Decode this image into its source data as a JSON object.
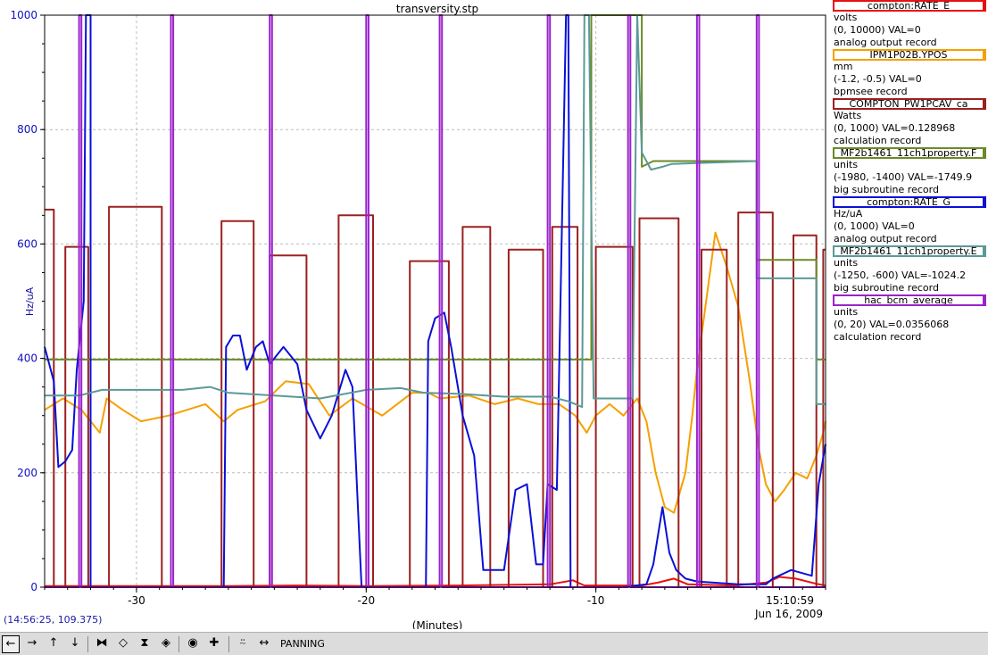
{
  "window": {
    "title": "transversity.stp"
  },
  "chart_data": {
    "type": "line",
    "title": "transversity.stp",
    "xlabel": "(Minutes)",
    "ylabel": "Hz/uA",
    "xlim": [
      -34,
      0
    ],
    "ylim": [
      0,
      1000
    ],
    "x_ticks": [
      -30,
      -20,
      -10
    ],
    "y_ticks": [
      0,
      200,
      400,
      600,
      800,
      1000
    ],
    "grid": true,
    "end_time": "15:10:59",
    "end_date": "Jun 16, 2009",
    "legend_position": "right",
    "series": [
      {
        "name": "compton:RATE_E",
        "color": "#e81010",
        "units": "volts",
        "range": "(0, 10000)",
        "val": "VAL=0",
        "record": "analog output record",
        "points": [
          [
            -34,
            2
          ],
          [
            -26,
            2
          ],
          [
            -23,
            3
          ],
          [
            -20,
            2
          ],
          [
            -16,
            3
          ],
          [
            -12,
            5
          ],
          [
            -11,
            12
          ],
          [
            -10.5,
            3
          ],
          [
            -8,
            3
          ],
          [
            -7.3,
            8
          ],
          [
            -6.6,
            15
          ],
          [
            -6,
            5
          ],
          [
            -4,
            3
          ],
          [
            -2.6,
            8
          ],
          [
            -2,
            18
          ],
          [
            -1.3,
            15
          ],
          [
            -0.4,
            6
          ],
          [
            0,
            3
          ]
        ]
      },
      {
        "name": "IPM1P02B.YPOS",
        "color": "#f5a000",
        "units": "mm",
        "range": "(-1.2, -0.5)",
        "val": "VAL=0",
        "record": "bpmsee record",
        "points": [
          [
            -34,
            310
          ],
          [
            -33.2,
            330
          ],
          [
            -32.4,
            310
          ],
          [
            -31.6,
            270
          ],
          [
            -31.3,
            330
          ],
          [
            -30.6,
            310
          ],
          [
            -29.8,
            290
          ],
          [
            -28.6,
            300
          ],
          [
            -27,
            320
          ],
          [
            -26.2,
            290
          ],
          [
            -25.6,
            310
          ],
          [
            -24.4,
            325
          ],
          [
            -23.5,
            360
          ],
          [
            -22.5,
            355
          ],
          [
            -21.6,
            300
          ],
          [
            -20.6,
            330
          ],
          [
            -19.3,
            300
          ],
          [
            -18,
            340
          ],
          [
            -17.3,
            340
          ],
          [
            -16.8,
            330
          ],
          [
            -15.5,
            335
          ],
          [
            -14.4,
            320
          ],
          [
            -13.4,
            330
          ],
          [
            -12.5,
            320
          ],
          [
            -11.6,
            320
          ],
          [
            -10.9,
            300
          ],
          [
            -10.4,
            270
          ],
          [
            -10,
            300
          ],
          [
            -9.4,
            320
          ],
          [
            -8.8,
            300
          ],
          [
            -8.2,
            330
          ],
          [
            -7.8,
            290
          ],
          [
            -7.4,
            200
          ],
          [
            -7.0,
            140
          ],
          [
            -6.6,
            130
          ],
          [
            -6.1,
            200
          ],
          [
            -5.8,
            300
          ],
          [
            -5.6,
            380
          ],
          [
            -5.2,
            500
          ],
          [
            -4.8,
            620
          ],
          [
            -4.3,
            560
          ],
          [
            -3.8,
            490
          ],
          [
            -3.3,
            360
          ],
          [
            -2.9,
            240
          ],
          [
            -2.6,
            180
          ],
          [
            -2.2,
            150
          ],
          [
            -1.8,
            170
          ],
          [
            -1.3,
            200
          ],
          [
            -0.8,
            190
          ],
          [
            -0.4,
            230
          ],
          [
            -0.1,
            270
          ],
          [
            0,
            290
          ]
        ]
      },
      {
        "name": "COMPTON_PW1PCAV_ca",
        "color": "#9c2020",
        "units": "Watts",
        "range": "(0, 1000)",
        "val": "VAL=0.128968",
        "record": "calculation record",
        "points": [
          [
            -34,
            660
          ],
          [
            -33.6,
            660
          ],
          [
            -33.6,
            0
          ],
          [
            -33.1,
            0
          ],
          [
            -33.1,
            595
          ],
          [
            -32.1,
            595
          ],
          [
            -32.1,
            0
          ],
          [
            -31.2,
            0
          ],
          [
            -31.2,
            665
          ],
          [
            -28.9,
            665
          ],
          [
            -28.9,
            0
          ],
          [
            -26.3,
            0
          ],
          [
            -26.3,
            640
          ],
          [
            -24.9,
            640
          ],
          [
            -24.9,
            0
          ],
          [
            -24.2,
            0
          ],
          [
            -24.2,
            580
          ],
          [
            -22.6,
            580
          ],
          [
            -22.6,
            0
          ],
          [
            -21.2,
            0
          ],
          [
            -21.2,
            650
          ],
          [
            -19.7,
            650
          ],
          [
            -19.7,
            0
          ],
          [
            -18.1,
            0
          ],
          [
            -18.1,
            570
          ],
          [
            -16.4,
            570
          ],
          [
            -16.4,
            0
          ],
          [
            -15.8,
            0
          ],
          [
            -15.8,
            630
          ],
          [
            -14.6,
            630
          ],
          [
            -14.6,
            0
          ],
          [
            -13.8,
            0
          ],
          [
            -13.8,
            590
          ],
          [
            -12.3,
            590
          ],
          [
            -12.3,
            0
          ],
          [
            -11.9,
            0
          ],
          [
            -11.9,
            630
          ],
          [
            -10.8,
            630
          ],
          [
            -10.8,
            0
          ],
          [
            -10.0,
            0
          ],
          [
            -10.0,
            595
          ],
          [
            -8.4,
            595
          ],
          [
            -8.4,
            0
          ],
          [
            -8.1,
            0
          ],
          [
            -8.1,
            645
          ],
          [
            -6.4,
            645
          ],
          [
            -6.4,
            0
          ],
          [
            -5.4,
            0
          ],
          [
            -5.4,
            590
          ],
          [
            -4.3,
            590
          ],
          [
            -4.3,
            0
          ],
          [
            -3.8,
            0
          ],
          [
            -3.8,
            655
          ],
          [
            -2.3,
            655
          ],
          [
            -2.3,
            0
          ],
          [
            -1.4,
            0
          ],
          [
            -1.4,
            615
          ],
          [
            -0.4,
            615
          ],
          [
            -0.4,
            0
          ],
          [
            -0.1,
            0
          ],
          [
            -0.1,
            590
          ],
          [
            0,
            590
          ]
        ]
      },
      {
        "name": "MF2b1461_11ch1property.F",
        "color": "#6a8a28",
        "units": "units",
        "range": "(-1980, -1400)",
        "val": "VAL=-1749.9",
        "record": "big subroutine record",
        "points": [
          [
            -34,
            398
          ],
          [
            -10.4,
            398
          ],
          [
            -10.2,
            398
          ],
          [
            -10.2,
            1000
          ],
          [
            -8.0,
            1000
          ],
          [
            -8.0,
            735
          ],
          [
            -7.5,
            745
          ],
          [
            -3.0,
            745
          ],
          [
            -3.0,
            572
          ],
          [
            -0.4,
            572
          ],
          [
            -0.4,
            398
          ],
          [
            0,
            398
          ]
        ]
      },
      {
        "name": "compton:RATE_G",
        "color": "#0a10d8",
        "units": "Hz/uA",
        "range": "(0, 1000)",
        "val": "VAL=0",
        "record": "analog output record",
        "points": [
          [
            -34,
            420
          ],
          [
            -33.6,
            360
          ],
          [
            -33.4,
            210
          ],
          [
            -33.1,
            220
          ],
          [
            -32.8,
            240
          ],
          [
            -32.6,
            380
          ],
          [
            -32.3,
            500
          ],
          [
            -32.2,
            1000
          ],
          [
            -32.0,
            1000
          ],
          [
            -32.0,
            0
          ],
          [
            -26.2,
            0
          ],
          [
            -26.1,
            420
          ],
          [
            -25.8,
            440
          ],
          [
            -25.5,
            440
          ],
          [
            -25.2,
            380
          ],
          [
            -24.8,
            420
          ],
          [
            -24.5,
            430
          ],
          [
            -24.2,
            390
          ],
          [
            -23.6,
            420
          ],
          [
            -23.0,
            390
          ],
          [
            -22.6,
            310
          ],
          [
            -22.0,
            260
          ],
          [
            -21.5,
            300
          ],
          [
            -20.9,
            380
          ],
          [
            -20.6,
            350
          ],
          [
            -20.2,
            0
          ],
          [
            -17.4,
            0
          ],
          [
            -17.3,
            430
          ],
          [
            -17.0,
            470
          ],
          [
            -16.6,
            480
          ],
          [
            -16.3,
            420
          ],
          [
            -15.8,
            300
          ],
          [
            -15.3,
            230
          ],
          [
            -14.9,
            30
          ],
          [
            -14.0,
            30
          ],
          [
            -13.5,
            170
          ],
          [
            -13.0,
            180
          ],
          [
            -12.6,
            40
          ],
          [
            -12.3,
            40
          ],
          [
            -12.1,
            180
          ],
          [
            -11.7,
            170
          ],
          [
            -11.3,
            1000
          ],
          [
            -11.2,
            1000
          ],
          [
            -11.1,
            0
          ],
          [
            -8.8,
            0
          ],
          [
            -7.8,
            5
          ],
          [
            -7.5,
            40
          ],
          [
            -7.1,
            140
          ],
          [
            -6.8,
            60
          ],
          [
            -6.5,
            30
          ],
          [
            -6.1,
            15
          ],
          [
            -5.6,
            10
          ],
          [
            -3.8,
            5
          ],
          [
            -2.6,
            5
          ],
          [
            -2.3,
            15
          ],
          [
            -1.5,
            30
          ],
          [
            -0.6,
            20
          ],
          [
            -0.3,
            180
          ],
          [
            0,
            250
          ]
        ]
      },
      {
        "name": "MF2b1461_11ch1property.E",
        "color": "#5a9a96",
        "units": "units",
        "range": "(-1250, -600)",
        "val": "VAL=-1024.2",
        "record": "big subroutine record",
        "points": [
          [
            -34,
            335
          ],
          [
            -32.5,
            335
          ],
          [
            -31.5,
            345
          ],
          [
            -28,
            345
          ],
          [
            -26.8,
            350
          ],
          [
            -26,
            340
          ],
          [
            -24,
            335
          ],
          [
            -22,
            330
          ],
          [
            -20,
            345
          ],
          [
            -18.5,
            348
          ],
          [
            -17.5,
            340
          ],
          [
            -16,
            338
          ],
          [
            -14,
            333
          ],
          [
            -12,
            333
          ],
          [
            -11.2,
            325
          ],
          [
            -10.6,
            315
          ],
          [
            -10.5,
            1000
          ],
          [
            -10.3,
            1000
          ],
          [
            -10.1,
            330
          ],
          [
            -9,
            330
          ],
          [
            -8.4,
            330
          ],
          [
            -8.2,
            1000
          ],
          [
            -8.0,
            760
          ],
          [
            -7.6,
            730
          ],
          [
            -7.1,
            735
          ],
          [
            -6.7,
            740
          ],
          [
            -3.0,
            745
          ],
          [
            -3.0,
            540
          ],
          [
            -0.4,
            540
          ],
          [
            -0.4,
            320
          ],
          [
            0,
            320
          ]
        ]
      },
      {
        "name": "hac_bcm_average",
        "color": "#9a22cc",
        "units": "units",
        "range": "(0, 20)",
        "val": "VAL=0.0356068",
        "record": "calculation record",
        "points": [
          [
            -34,
            0
          ],
          [
            -32.5,
            0
          ],
          [
            -32.5,
            1000
          ],
          [
            -32.4,
            1000
          ],
          [
            -32.4,
            0
          ],
          [
            -28.5,
            0
          ],
          [
            -28.5,
            1000
          ],
          [
            -28.4,
            1000
          ],
          [
            -28.4,
            0
          ],
          [
            -24.2,
            0
          ],
          [
            -24.2,
            1000
          ],
          [
            -24.1,
            1000
          ],
          [
            -24.1,
            0
          ],
          [
            -20.0,
            0
          ],
          [
            -20.0,
            1000
          ],
          [
            -19.9,
            1000
          ],
          [
            -19.9,
            0
          ],
          [
            -16.8,
            0
          ],
          [
            -16.8,
            1000
          ],
          [
            -16.7,
            1000
          ],
          [
            -16.7,
            0
          ],
          [
            -12.1,
            0
          ],
          [
            -12.1,
            1000
          ],
          [
            -12.0,
            1000
          ],
          [
            -12.0,
            0
          ],
          [
            -8.6,
            0
          ],
          [
            -8.6,
            1000
          ],
          [
            -8.5,
            1000
          ],
          [
            -8.5,
            0
          ],
          [
            -5.6,
            0
          ],
          [
            -5.6,
            1000
          ],
          [
            -5.5,
            1000
          ],
          [
            -5.5,
            0
          ],
          [
            -3.0,
            0
          ],
          [
            -3.0,
            1000
          ],
          [
            -2.9,
            1000
          ],
          [
            -2.9,
            0
          ],
          [
            0,
            0
          ]
        ]
      }
    ]
  },
  "status": {
    "cursor": "(14:56:25, 109.375)",
    "mode": "PANNING"
  },
  "toolbar": [
    {
      "name": "pan-left",
      "icon": "arrow-left-icon",
      "glyph": "←",
      "active": true
    },
    {
      "name": "pan-right",
      "icon": "arrow-right-icon",
      "glyph": "→",
      "active": false
    },
    {
      "name": "pan-up",
      "icon": "arrow-up-icon",
      "glyph": "↑",
      "active": false
    },
    {
      "name": "pan-down",
      "icon": "arrow-down-icon",
      "glyph": "↓",
      "active": false
    },
    {
      "name": "zoom-x-out",
      "icon": "zoom-x-out-icon",
      "glyph": "⧓",
      "active": false
    },
    {
      "name": "zoom-x-in",
      "icon": "zoom-x-in-icon",
      "glyph": "◇",
      "active": false
    },
    {
      "name": "zoom-y-out",
      "icon": "zoom-y-out-icon",
      "glyph": "⧗",
      "active": false
    },
    {
      "name": "zoom-y-in",
      "icon": "zoom-y-in-icon",
      "glyph": "◈",
      "active": false
    },
    {
      "name": "stop",
      "icon": "stop-icon",
      "glyph": "◉",
      "active": false
    },
    {
      "name": "center",
      "icon": "crosshair-icon",
      "glyph": "✚",
      "active": false
    },
    {
      "name": "autoscale",
      "icon": "autoscale-icon",
      "glyph": "⍨",
      "active": false
    },
    {
      "name": "panning",
      "icon": "double-arrow-icon",
      "glyph": "↔",
      "active": false
    }
  ]
}
